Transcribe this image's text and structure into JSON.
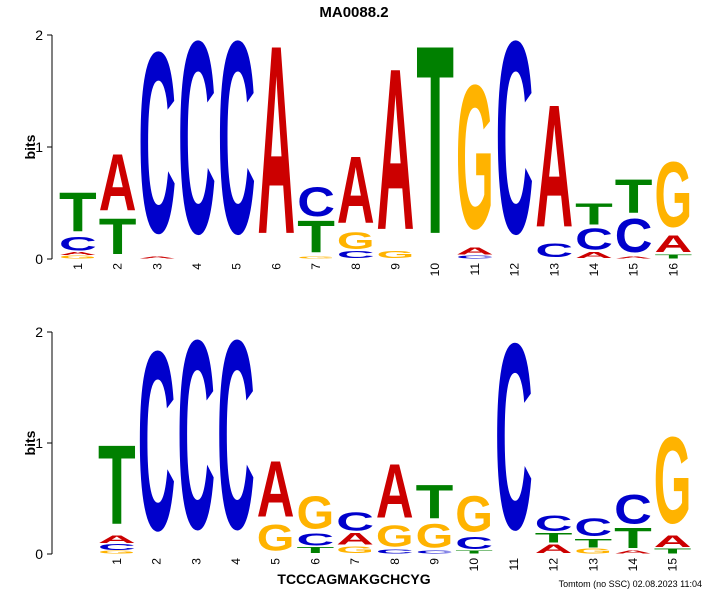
{
  "title": "MA0088.2",
  "consensus": "TCCCAGMAKGCHCYG",
  "footer": "Tomtom (no SSC) 02.08.2023 11:04",
  "colors": {
    "A": "#cc0000",
    "C": "#0000cc",
    "G": "#ffb300",
    "T": "#008000"
  },
  "logos": [
    {
      "ylabel": "bits",
      "yticks": [
        "0",
        "1",
        "2"
      ],
      "ymax": 2,
      "positions": [
        {
          "label": "1",
          "stack": [
            [
              "G",
              0.03
            ],
            [
              "A",
              0.03
            ],
            [
              "C",
              0.14
            ],
            [
              "T",
              0.4
            ]
          ]
        },
        {
          "label": "2",
          "stack": [
            [
              "T",
              0.37
            ],
            [
              "A",
              0.58
            ]
          ]
        },
        {
          "label": "3",
          "stack": [
            [
              "A",
              0.02
            ],
            [
              "C",
              1.86
            ]
          ]
        },
        {
          "label": "4",
          "stack": [
            [
              "C",
              1.98
            ]
          ]
        },
        {
          "label": "5",
          "stack": [
            [
              "C",
              1.98
            ]
          ]
        },
        {
          "label": "6",
          "stack": [
            [
              "A",
              1.94
            ]
          ]
        },
        {
          "label": "7",
          "stack": [
            [
              "G",
              0.02
            ],
            [
              "T",
              0.33
            ],
            [
              "C",
              0.3
            ]
          ]
        },
        {
          "label": "8",
          "stack": [
            [
              "C",
              0.07
            ],
            [
              "G",
              0.17
            ],
            [
              "A",
              0.69
            ]
          ]
        },
        {
          "label": "9",
          "stack": [
            [
              "G",
              0.07
            ],
            [
              "A",
              1.66
            ]
          ]
        },
        {
          "label": "10",
          "stack": [
            [
              "T",
              1.94
            ]
          ]
        },
        {
          "label": "11",
          "stack": [
            [
              "C",
              0.03
            ],
            [
              "A",
              0.07
            ],
            [
              "G",
              1.48
            ]
          ]
        },
        {
          "label": "12",
          "stack": [
            [
              "C",
              1.98
            ]
          ]
        },
        {
          "label": "13",
          "stack": [
            [
              "C",
              0.14
            ],
            [
              "A",
              1.26
            ]
          ]
        },
        {
          "label": "14",
          "stack": [
            [
              "A",
              0.06
            ],
            [
              "C",
              0.22
            ],
            [
              "T",
              0.22
            ]
          ]
        },
        {
          "label": "15",
          "stack": [
            [
              "A",
              0.02
            ],
            [
              "C",
              0.35
            ],
            [
              "T",
              0.35
            ]
          ]
        },
        {
          "label": "16",
          "stack": [
            [
              "T",
              0.04
            ],
            [
              "A",
              0.17
            ],
            [
              "G",
              0.67
            ]
          ]
        }
      ]
    },
    {
      "ylabel": "bits",
      "yticks": [
        "0",
        "1",
        "2"
      ],
      "ymax": 2,
      "positions": [
        {
          "label": "1",
          "stack": [
            [
              "G",
              0.03
            ],
            [
              "C",
              0.06
            ],
            [
              "A",
              0.08
            ],
            [
              "T",
              0.82
            ]
          ]
        },
        {
          "label": "2",
          "stack": [
            [
              "C",
              1.86
            ]
          ]
        },
        {
          "label": "3",
          "stack": [
            [
              "C",
              1.96
            ]
          ]
        },
        {
          "label": "4",
          "stack": [
            [
              "C",
              1.96
            ]
          ]
        },
        {
          "label": "5",
          "stack": [
            [
              "G",
              0.27
            ],
            [
              "A",
              0.58
            ]
          ]
        },
        {
          "label": "6",
          "stack": [
            [
              "T",
              0.06
            ],
            [
              "C",
              0.13
            ],
            [
              "G",
              0.34
            ]
          ]
        },
        {
          "label": "7",
          "stack": [
            [
              "G",
              0.07
            ],
            [
              "A",
              0.12
            ],
            [
              "C",
              0.19
            ]
          ]
        },
        {
          "label": "8",
          "stack": [
            [
              "C",
              0.04
            ],
            [
              "G",
              0.22
            ],
            [
              "A",
              0.56
            ]
          ]
        },
        {
          "label": "9",
          "stack": [
            [
              "C",
              0.03
            ],
            [
              "G",
              0.25
            ],
            [
              "T",
              0.35
            ]
          ]
        },
        {
          "label": "10",
          "stack": [
            [
              "T",
              0.03
            ],
            [
              "C",
              0.13
            ],
            [
              "G",
              0.37
            ]
          ]
        },
        {
          "label": "11",
          "stack": [
            [
              "C",
              1.93
            ]
          ]
        },
        {
          "label": "12",
          "stack": [
            [
              "A",
              0.09
            ],
            [
              "T",
              0.1
            ],
            [
              "C",
              0.16
            ]
          ]
        },
        {
          "label": "13",
          "stack": [
            [
              "G",
              0.05
            ],
            [
              "T",
              0.09
            ],
            [
              "C",
              0.18
            ]
          ]
        },
        {
          "label": "14",
          "stack": [
            [
              "A",
              0.03
            ],
            [
              "T",
              0.21
            ],
            [
              "C",
              0.3
            ]
          ]
        },
        {
          "label": "15",
          "stack": [
            [
              "T",
              0.05
            ],
            [
              "A",
              0.12
            ],
            [
              "G",
              0.9
            ]
          ]
        }
      ]
    }
  ]
}
